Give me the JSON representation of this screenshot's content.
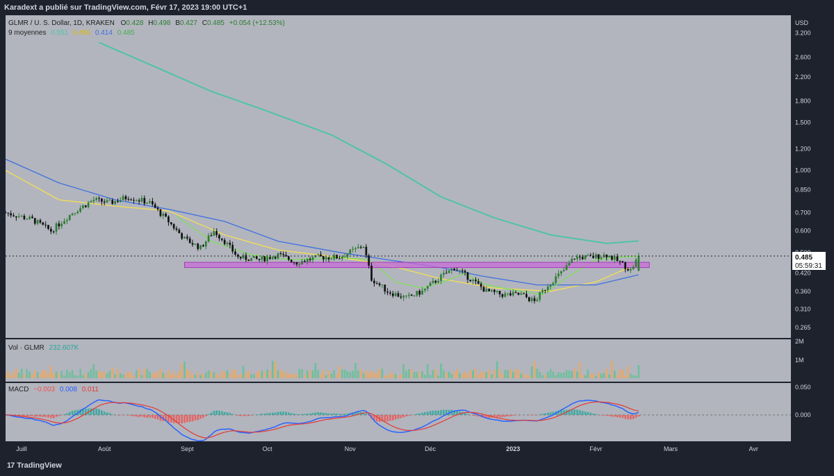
{
  "header": {
    "published": "Karadext a publié sur TradingView.com, Févr 17, 2023 19:00 UTC+1"
  },
  "footer": {
    "brand": "TradingView",
    "logo": "tradingview-logo-icon"
  },
  "legend": {
    "symbol": "GLMR / U. S. Dollar, 1D, KRAKEN",
    "o_label": "O",
    "o": "0.428",
    "h_label": "H",
    "h": "0.498",
    "b_label": "B",
    "b": "0.427",
    "c_label": "C",
    "c": "0.485",
    "change": "+0.054 (+12.53%)",
    "ma_label": "9 moyennes",
    "ma_values": [
      "0.551",
      "0.456",
      "0.414",
      "0.485"
    ],
    "vol_label": "Vol · GLMR",
    "vol_value": "232.607K",
    "macd_label": "MACD",
    "macd_values": [
      "−0.003",
      "0.008",
      "0.011"
    ]
  },
  "price_axis": {
    "currency": "USD",
    "ticks": [
      "3.200",
      "2.600",
      "2.200",
      "1.800",
      "1.500",
      "1.200",
      "1.000",
      "0.850",
      "0.700",
      "0.600",
      "0.500",
      "0.420",
      "0.360",
      "0.310",
      "0.265"
    ],
    "last_price": "0.485",
    "countdown": "05:59:31"
  },
  "volume_axis": {
    "ticks": [
      "2M",
      "1M"
    ]
  },
  "macd_axis": {
    "ticks": [
      "0.050",
      "0.000"
    ]
  },
  "time_axis": {
    "labels": [
      "Juill",
      "Août",
      "Sept",
      "Oct",
      "Nov",
      "Déc",
      "2023",
      "Févr",
      "Mars",
      "Avr"
    ]
  },
  "colors": {
    "bg": "#b2b5be",
    "up": "#2e7d32",
    "down": "#111111",
    "ma_teal": "#4fc3a6",
    "ma_yellow": "#f5e050",
    "ma_blue": "#3d6fe0",
    "ma_green": "#7ee05a",
    "zone": "#c86dd7",
    "vol_up": "#6fbf9e",
    "vol_down": "#e6a96b",
    "macd_line": "#2962ff",
    "signal_line": "#e53935",
    "hist_up": "#26a69a",
    "hist_down": "#ef5350"
  },
  "chart_data": {
    "type": "candlestick",
    "title": "GLMR / U. S. Dollar, 1D, KRAKEN",
    "y_scale": "log",
    "ylim": [
      0.25,
      3.5
    ],
    "x_range": [
      "2022-06-25",
      "2023-04-15"
    ],
    "support_zone": [
      0.44,
      0.46
    ],
    "price_path": [
      [
        "2022-06-25",
        0.7
      ],
      [
        "2022-07-05",
        0.66
      ],
      [
        "2022-07-12",
        0.6
      ],
      [
        "2022-07-20",
        0.7
      ],
      [
        "2022-07-28",
        0.78
      ],
      [
        "2022-08-03",
        0.76
      ],
      [
        "2022-08-10",
        0.8
      ],
      [
        "2022-08-18",
        0.76
      ],
      [
        "2022-08-25",
        0.65
      ],
      [
        "2022-08-31",
        0.56
      ],
      [
        "2022-09-06",
        0.52
      ],
      [
        "2022-09-11",
        0.6
      ],
      [
        "2022-09-15",
        0.55
      ],
      [
        "2022-09-20",
        0.48
      ],
      [
        "2022-09-28",
        0.47
      ],
      [
        "2022-10-05",
        0.49
      ],
      [
        "2022-10-12",
        0.46
      ],
      [
        "2022-10-20",
        0.48
      ],
      [
        "2022-10-28",
        0.48
      ],
      [
        "2022-11-06",
        0.53
      ],
      [
        "2022-11-09",
        0.4
      ],
      [
        "2022-11-15",
        0.36
      ],
      [
        "2022-11-22",
        0.34
      ],
      [
        "2022-11-28",
        0.36
      ],
      [
        "2022-12-04",
        0.4
      ],
      [
        "2022-12-10",
        0.44
      ],
      [
        "2022-12-16",
        0.4
      ],
      [
        "2022-12-22",
        0.36
      ],
      [
        "2022-12-28",
        0.35
      ],
      [
        "2023-01-04",
        0.35
      ],
      [
        "2023-01-09",
        0.33
      ],
      [
        "2023-01-14",
        0.38
      ],
      [
        "2023-01-20",
        0.43
      ],
      [
        "2023-01-24",
        0.48
      ],
      [
        "2023-01-30",
        0.48
      ],
      [
        "2023-02-05",
        0.49
      ],
      [
        "2023-02-10",
        0.46
      ],
      [
        "2023-02-14",
        0.43
      ],
      [
        "2023-02-17",
        0.485
      ]
    ],
    "ma_series": [
      {
        "name": "",
        "points": [
          [
            "2022-07-30",
            2.95
          ],
          [
            "2022-08-20",
            2.4
          ],
          [
            "2022-09-10",
            1.95
          ],
          [
            "2022-10-01",
            1.65
          ],
          [
            "2022-10-25",
            1.35
          ],
          [
            "2022-11-15",
            1.05
          ],
          [
            "2022-12-05",
            0.8
          ],
          [
            "2022-12-25",
            0.67
          ],
          [
            "2023-01-15",
            0.58
          ],
          [
            "2023-02-05",
            0.54
          ],
          [
            "2023-02-17",
            0.551
          ]
        ]
      },
      {
        "name": "",
        "points": [
          [
            "2022-06-25",
            1.0
          ],
          [
            "2022-07-15",
            0.78
          ],
          [
            "2022-08-05",
            0.74
          ],
          [
            "2022-08-25",
            0.71
          ],
          [
            "2022-09-15",
            0.58
          ],
          [
            "2022-10-05",
            0.51
          ],
          [
            "2022-10-28",
            0.48
          ],
          [
            "2022-11-15",
            0.45
          ],
          [
            "2022-12-05",
            0.4
          ],
          [
            "2022-12-25",
            0.37
          ],
          [
            "2023-01-15",
            0.36
          ],
          [
            "2023-02-01",
            0.39
          ],
          [
            "2023-02-17",
            0.456
          ]
        ]
      },
      {
        "name": "",
        "points": [
          [
            "2022-06-25",
            1.1
          ],
          [
            "2022-07-15",
            0.9
          ],
          [
            "2022-08-05",
            0.78
          ],
          [
            "2022-08-25",
            0.72
          ],
          [
            "2022-09-15",
            0.65
          ],
          [
            "2022-10-05",
            0.55
          ],
          [
            "2022-10-28",
            0.5
          ],
          [
            "2022-11-15",
            0.47
          ],
          [
            "2022-12-05",
            0.44
          ],
          [
            "2022-12-20",
            0.41
          ],
          [
            "2023-01-10",
            0.38
          ],
          [
            "2023-02-01",
            0.38
          ],
          [
            "2023-02-17",
            0.414
          ]
        ]
      },
      {
        "name": "",
        "points": [
          [
            "2022-08-28",
            0.68
          ],
          [
            "2022-09-10",
            0.55
          ],
          [
            "2022-09-25",
            0.49
          ],
          [
            "2022-10-10",
            0.47
          ],
          [
            "2022-10-28",
            0.48
          ],
          [
            "2022-11-08",
            0.47
          ],
          [
            "2022-11-18",
            0.39
          ],
          [
            "2022-11-28",
            0.37
          ],
          [
            "2022-12-06",
            0.39
          ],
          [
            "2022-12-14",
            0.42
          ],
          [
            "2022-12-22",
            0.38
          ],
          [
            "2023-01-04",
            0.36
          ],
          [
            "2023-01-12",
            0.35
          ],
          [
            "2023-01-22",
            0.41
          ],
          [
            "2023-02-01",
            0.47
          ],
          [
            "2023-02-10",
            0.48
          ],
          [
            "2023-02-17",
            0.485
          ]
        ]
      }
    ],
    "volume_max": 2000000,
    "macd_ylim": [
      -0.06,
      0.06
    ]
  }
}
